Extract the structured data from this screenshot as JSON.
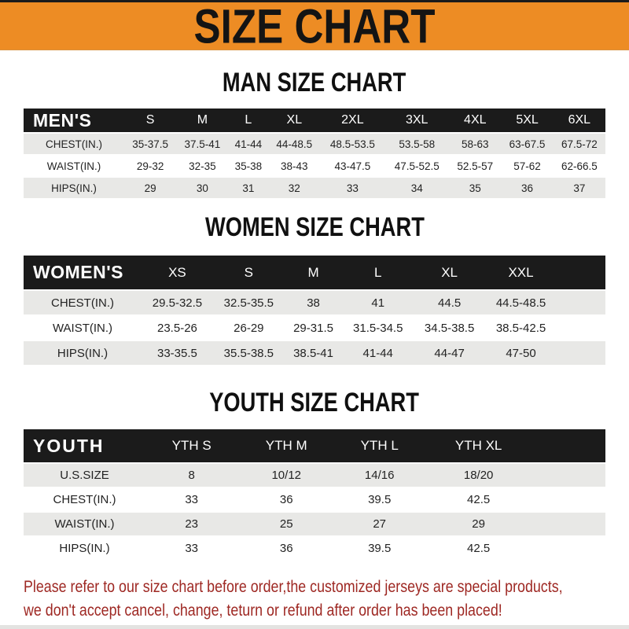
{
  "header": {
    "title": "SIZE CHART"
  },
  "sections": {
    "men": {
      "title": "MAN SIZE CHART",
      "label": "MEN'S",
      "sizes": [
        "S",
        "M",
        "L",
        "XL",
        "2XL",
        "3XL",
        "4XL",
        "5XL",
        "6XL"
      ],
      "rows": [
        {
          "label": "CHEST(IN.)",
          "values": [
            "35-37.5",
            "37.5-41",
            "41-44",
            "44-48.5",
            "48.5-53.5",
            "53.5-58",
            "58-63",
            "63-67.5",
            "67.5-72"
          ]
        },
        {
          "label": "WAIST(IN.)",
          "values": [
            "29-32",
            "32-35",
            "35-38",
            "38-43",
            "43-47.5",
            "47.5-52.5",
            "52.5-57",
            "57-62",
            "62-66.5"
          ]
        },
        {
          "label": "HIPS(IN.)",
          "values": [
            "29",
            "30",
            "31",
            "32",
            "33",
            "34",
            "35",
            "36",
            "37"
          ]
        }
      ]
    },
    "women": {
      "title": "WOMEN SIZE CHART",
      "label": "WOMEN'S",
      "sizes": [
        "XS",
        "S",
        "M",
        "L",
        "XL",
        "XXL"
      ],
      "rows": [
        {
          "label": "CHEST(IN.)",
          "values": [
            "29.5-32.5",
            "32.5-35.5",
            "38",
            "41",
            "44.5",
            "44.5-48.5"
          ]
        },
        {
          "label": "WAIST(IN.)",
          "values": [
            "23.5-26",
            "26-29",
            "29-31.5",
            "31.5-34.5",
            "34.5-38.5",
            "38.5-42.5"
          ]
        },
        {
          "label": "HIPS(IN.)",
          "values": [
            "33-35.5",
            "35.5-38.5",
            "38.5-41",
            "41-44",
            "44-47",
            "47-50"
          ]
        }
      ]
    },
    "youth": {
      "title": "YOUTH SIZE CHART",
      "label": "YOUTH",
      "sizes": [
        "YTH S",
        "YTH M",
        "YTH L",
        "YTH XL"
      ],
      "rows": [
        {
          "label": "U.S.SIZE",
          "values": [
            "8",
            "10/12",
            "14/16",
            "18/20"
          ]
        },
        {
          "label": "CHEST(IN.)",
          "values": [
            "33",
            "36",
            "39.5",
            "42.5"
          ]
        },
        {
          "label": "WAIST(IN.)",
          "values": [
            "23",
            "25",
            "27",
            "29"
          ]
        },
        {
          "label": "HIPS(IN.)",
          "values": [
            "33",
            "36",
            "39.5",
            "42.5"
          ]
        }
      ]
    }
  },
  "footer": {
    "line1": "Please refer to our size chart before order,the customized jerseys are special products,",
    "line2": "we don't accept cancel, change, teturn or refund after order has been placed!"
  },
  "colors": {
    "banner_orange": "#ED8C24",
    "table_header_black": "#1B1B1B",
    "row_gray": "#E8E8E6",
    "footer_red": "#9E2823"
  }
}
